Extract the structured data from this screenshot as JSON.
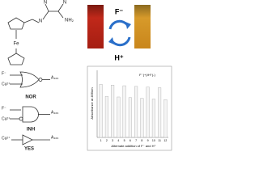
{
  "molecule": {
    "atoms": [
      "N",
      "N",
      "NH₂",
      "N",
      "Fe"
    ]
  },
  "photo": {
    "top": "F⁻",
    "bottom": "H⁺"
  },
  "gates": [
    {
      "inputs": [
        "F⁻",
        "Cu²⁺"
      ],
      "output": "A₄₆₆",
      "label": "NOR"
    },
    {
      "inputs": [
        "F⁻",
        "Cu²⁺"
      ],
      "output": "A₄₆₆",
      "label": "INH"
    },
    {
      "inputs": [
        "Cu²⁺"
      ],
      "output": "A₄₆₆",
      "label": "YES"
    }
  ],
  "chart_data": {
    "type": "bar",
    "x_label": "Alternate addition of F⁻ and H⁺",
    "y_label": "Absorbance at 466nm",
    "legend": "F⁻(+)/H⁺(-)",
    "categories": [
      "1",
      "2",
      "3",
      "4",
      "5",
      "6",
      "7",
      "8",
      "9",
      "10",
      "11",
      "12"
    ],
    "values": [
      0.8,
      0.62,
      0.79,
      0.61,
      0.78,
      0.6,
      0.77,
      0.59,
      0.76,
      0.58,
      0.75,
      0.57
    ],
    "color": "#f4f4f4",
    "ylim": [
      0,
      1
    ]
  }
}
